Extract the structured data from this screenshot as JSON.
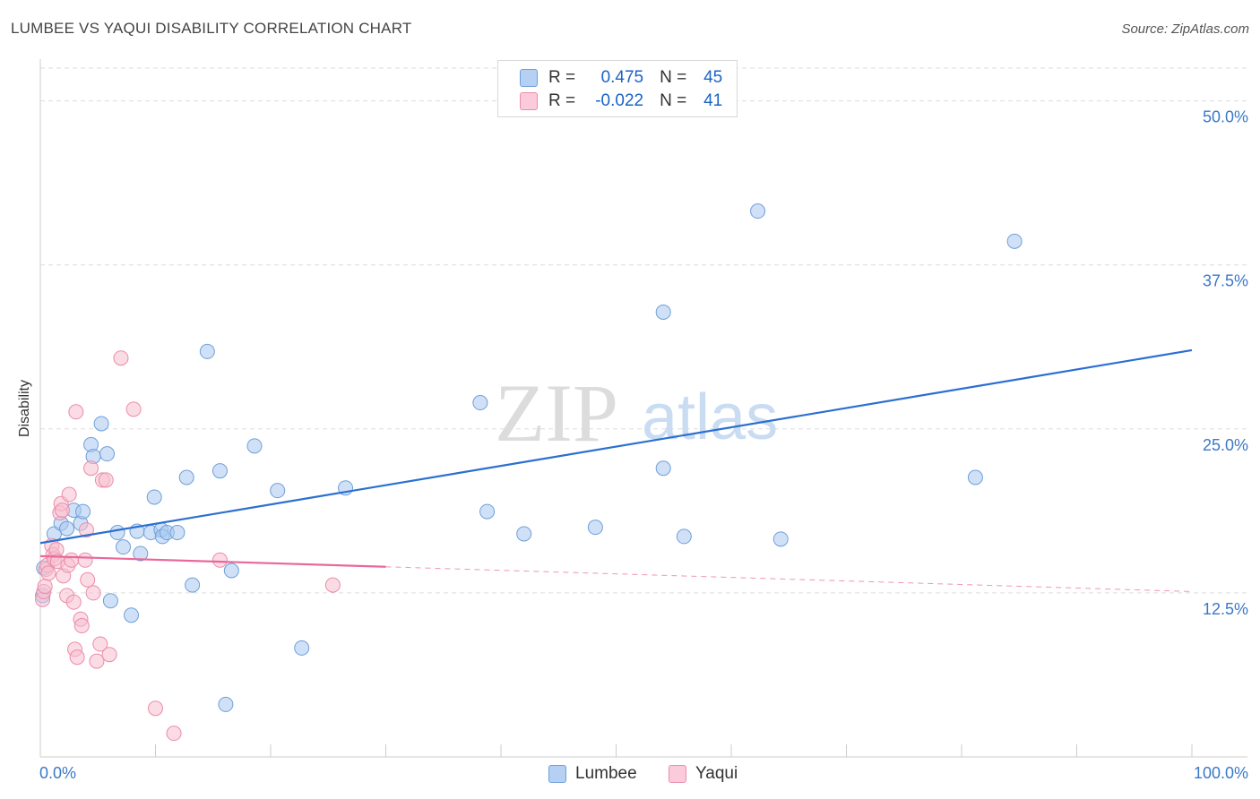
{
  "header": {
    "title": "LUMBEE VS YAQUI DISABILITY CORRELATION CHART",
    "source": "Source: ZipAtlas.com"
  },
  "watermark": {
    "zip": "ZIP",
    "atlas": "atlas"
  },
  "legend": {
    "rows": [
      {
        "series": "Lumbee",
        "r_label": "R =",
        "r_value": "0.475",
        "n_label": "N =",
        "n_value": "45"
      },
      {
        "series": "Yaqui",
        "r_label": "R =",
        "r_value": "-0.022",
        "n_label": "N =",
        "n_value": "41"
      }
    ]
  },
  "bottom_legend": [
    "Lumbee",
    "Yaqui"
  ],
  "colors": {
    "lumbee_fill": "#a9c8f0",
    "lumbee_stroke": "#6e9fd9",
    "lumbee_line": "#2b6fd0",
    "yaqui_fill": "#f8bfd0",
    "yaqui_stroke": "#ea8cab",
    "yaqui_line": "#e8689a",
    "tick_label": "#3a78c9",
    "grid": "#dddddd"
  },
  "chart_data": {
    "type": "scatter",
    "title": "LUMBEE VS YAQUI DISABILITY CORRELATION CHART",
    "xlabel": "",
    "ylabel": "Disability",
    "xlim": [
      0,
      100
    ],
    "ylim": [
      0,
      52.5
    ],
    "x_tick_labels": [
      {
        "value": 0,
        "label": "0.0%"
      },
      {
        "value": 100,
        "label": "100.0%"
      }
    ],
    "y_ticks": [
      {
        "value": 12.5,
        "label": "12.5%"
      },
      {
        "value": 25.0,
        "label": "25.0%"
      },
      {
        "value": 37.5,
        "label": "37.5%"
      },
      {
        "value": 50.0,
        "label": "50.0%"
      }
    ],
    "series": [
      {
        "name": "Lumbee",
        "trend": {
          "x": [
            0,
            100
          ],
          "y": [
            16.3,
            31.0
          ],
          "dashed_from": null
        },
        "points": [
          [
            0.2,
            12.3
          ],
          [
            0.3,
            14.4
          ],
          [
            1.2,
            17.0
          ],
          [
            1.8,
            17.8
          ],
          [
            2.3,
            17.4
          ],
          [
            2.9,
            18.8
          ],
          [
            3.5,
            17.8
          ],
          [
            3.7,
            18.7
          ],
          [
            4.4,
            23.8
          ],
          [
            4.6,
            22.9
          ],
          [
            5.3,
            25.4
          ],
          [
            5.8,
            23.1
          ],
          [
            6.1,
            11.9
          ],
          [
            6.7,
            17.1
          ],
          [
            7.2,
            16.0
          ],
          [
            7.9,
            10.8
          ],
          [
            8.4,
            17.2
          ],
          [
            8.7,
            15.5
          ],
          [
            9.6,
            17.1
          ],
          [
            9.9,
            19.8
          ],
          [
            10.5,
            17.3
          ],
          [
            10.6,
            16.8
          ],
          [
            11.0,
            17.1
          ],
          [
            11.9,
            17.1
          ],
          [
            12.7,
            21.3
          ],
          [
            13.2,
            13.1
          ],
          [
            14.5,
            30.9
          ],
          [
            15.6,
            21.8
          ],
          [
            16.1,
            4.0
          ],
          [
            16.6,
            14.2
          ],
          [
            18.6,
            23.7
          ],
          [
            20.6,
            20.3
          ],
          [
            22.7,
            8.3
          ],
          [
            26.5,
            20.5
          ],
          [
            38.2,
            27.0
          ],
          [
            38.8,
            18.7
          ],
          [
            42.0,
            17.0
          ],
          [
            48.2,
            17.5
          ],
          [
            54.1,
            33.9
          ],
          [
            54.1,
            22.0
          ],
          [
            55.9,
            16.8
          ],
          [
            62.3,
            41.6
          ],
          [
            64.3,
            16.6
          ],
          [
            81.2,
            21.3
          ],
          [
            84.6,
            39.3
          ]
        ]
      },
      {
        "name": "Yaqui",
        "trend": {
          "x": [
            0,
            100
          ],
          "y": [
            15.3,
            12.6
          ],
          "dashed_from": 30
        },
        "points": [
          [
            0.2,
            12.0
          ],
          [
            0.3,
            12.6
          ],
          [
            0.4,
            13.0
          ],
          [
            0.5,
            14.3
          ],
          [
            0.6,
            14.6
          ],
          [
            0.7,
            14.0
          ],
          [
            1.0,
            16.1
          ],
          [
            1.1,
            15.4
          ],
          [
            1.2,
            15.1
          ],
          [
            1.4,
            15.8
          ],
          [
            1.5,
            14.9
          ],
          [
            1.7,
            18.6
          ],
          [
            1.8,
            19.3
          ],
          [
            1.9,
            18.8
          ],
          [
            2.0,
            13.8
          ],
          [
            2.3,
            12.3
          ],
          [
            2.4,
            14.6
          ],
          [
            2.5,
            20.0
          ],
          [
            2.7,
            15.0
          ],
          [
            2.9,
            11.8
          ],
          [
            3.0,
            8.2
          ],
          [
            3.1,
            26.3
          ],
          [
            3.2,
            7.6
          ],
          [
            3.5,
            10.5
          ],
          [
            3.6,
            10.0
          ],
          [
            3.9,
            15.0
          ],
          [
            4.0,
            17.3
          ],
          [
            4.1,
            13.5
          ],
          [
            4.4,
            22.0
          ],
          [
            4.6,
            12.5
          ],
          [
            4.9,
            7.3
          ],
          [
            5.2,
            8.6
          ],
          [
            5.4,
            21.1
          ],
          [
            5.7,
            21.1
          ],
          [
            6.0,
            7.8
          ],
          [
            7.0,
            30.4
          ],
          [
            8.1,
            26.5
          ],
          [
            10.0,
            3.7
          ],
          [
            11.6,
            1.8
          ],
          [
            15.6,
            15.0
          ],
          [
            25.4,
            13.1
          ]
        ]
      }
    ]
  }
}
